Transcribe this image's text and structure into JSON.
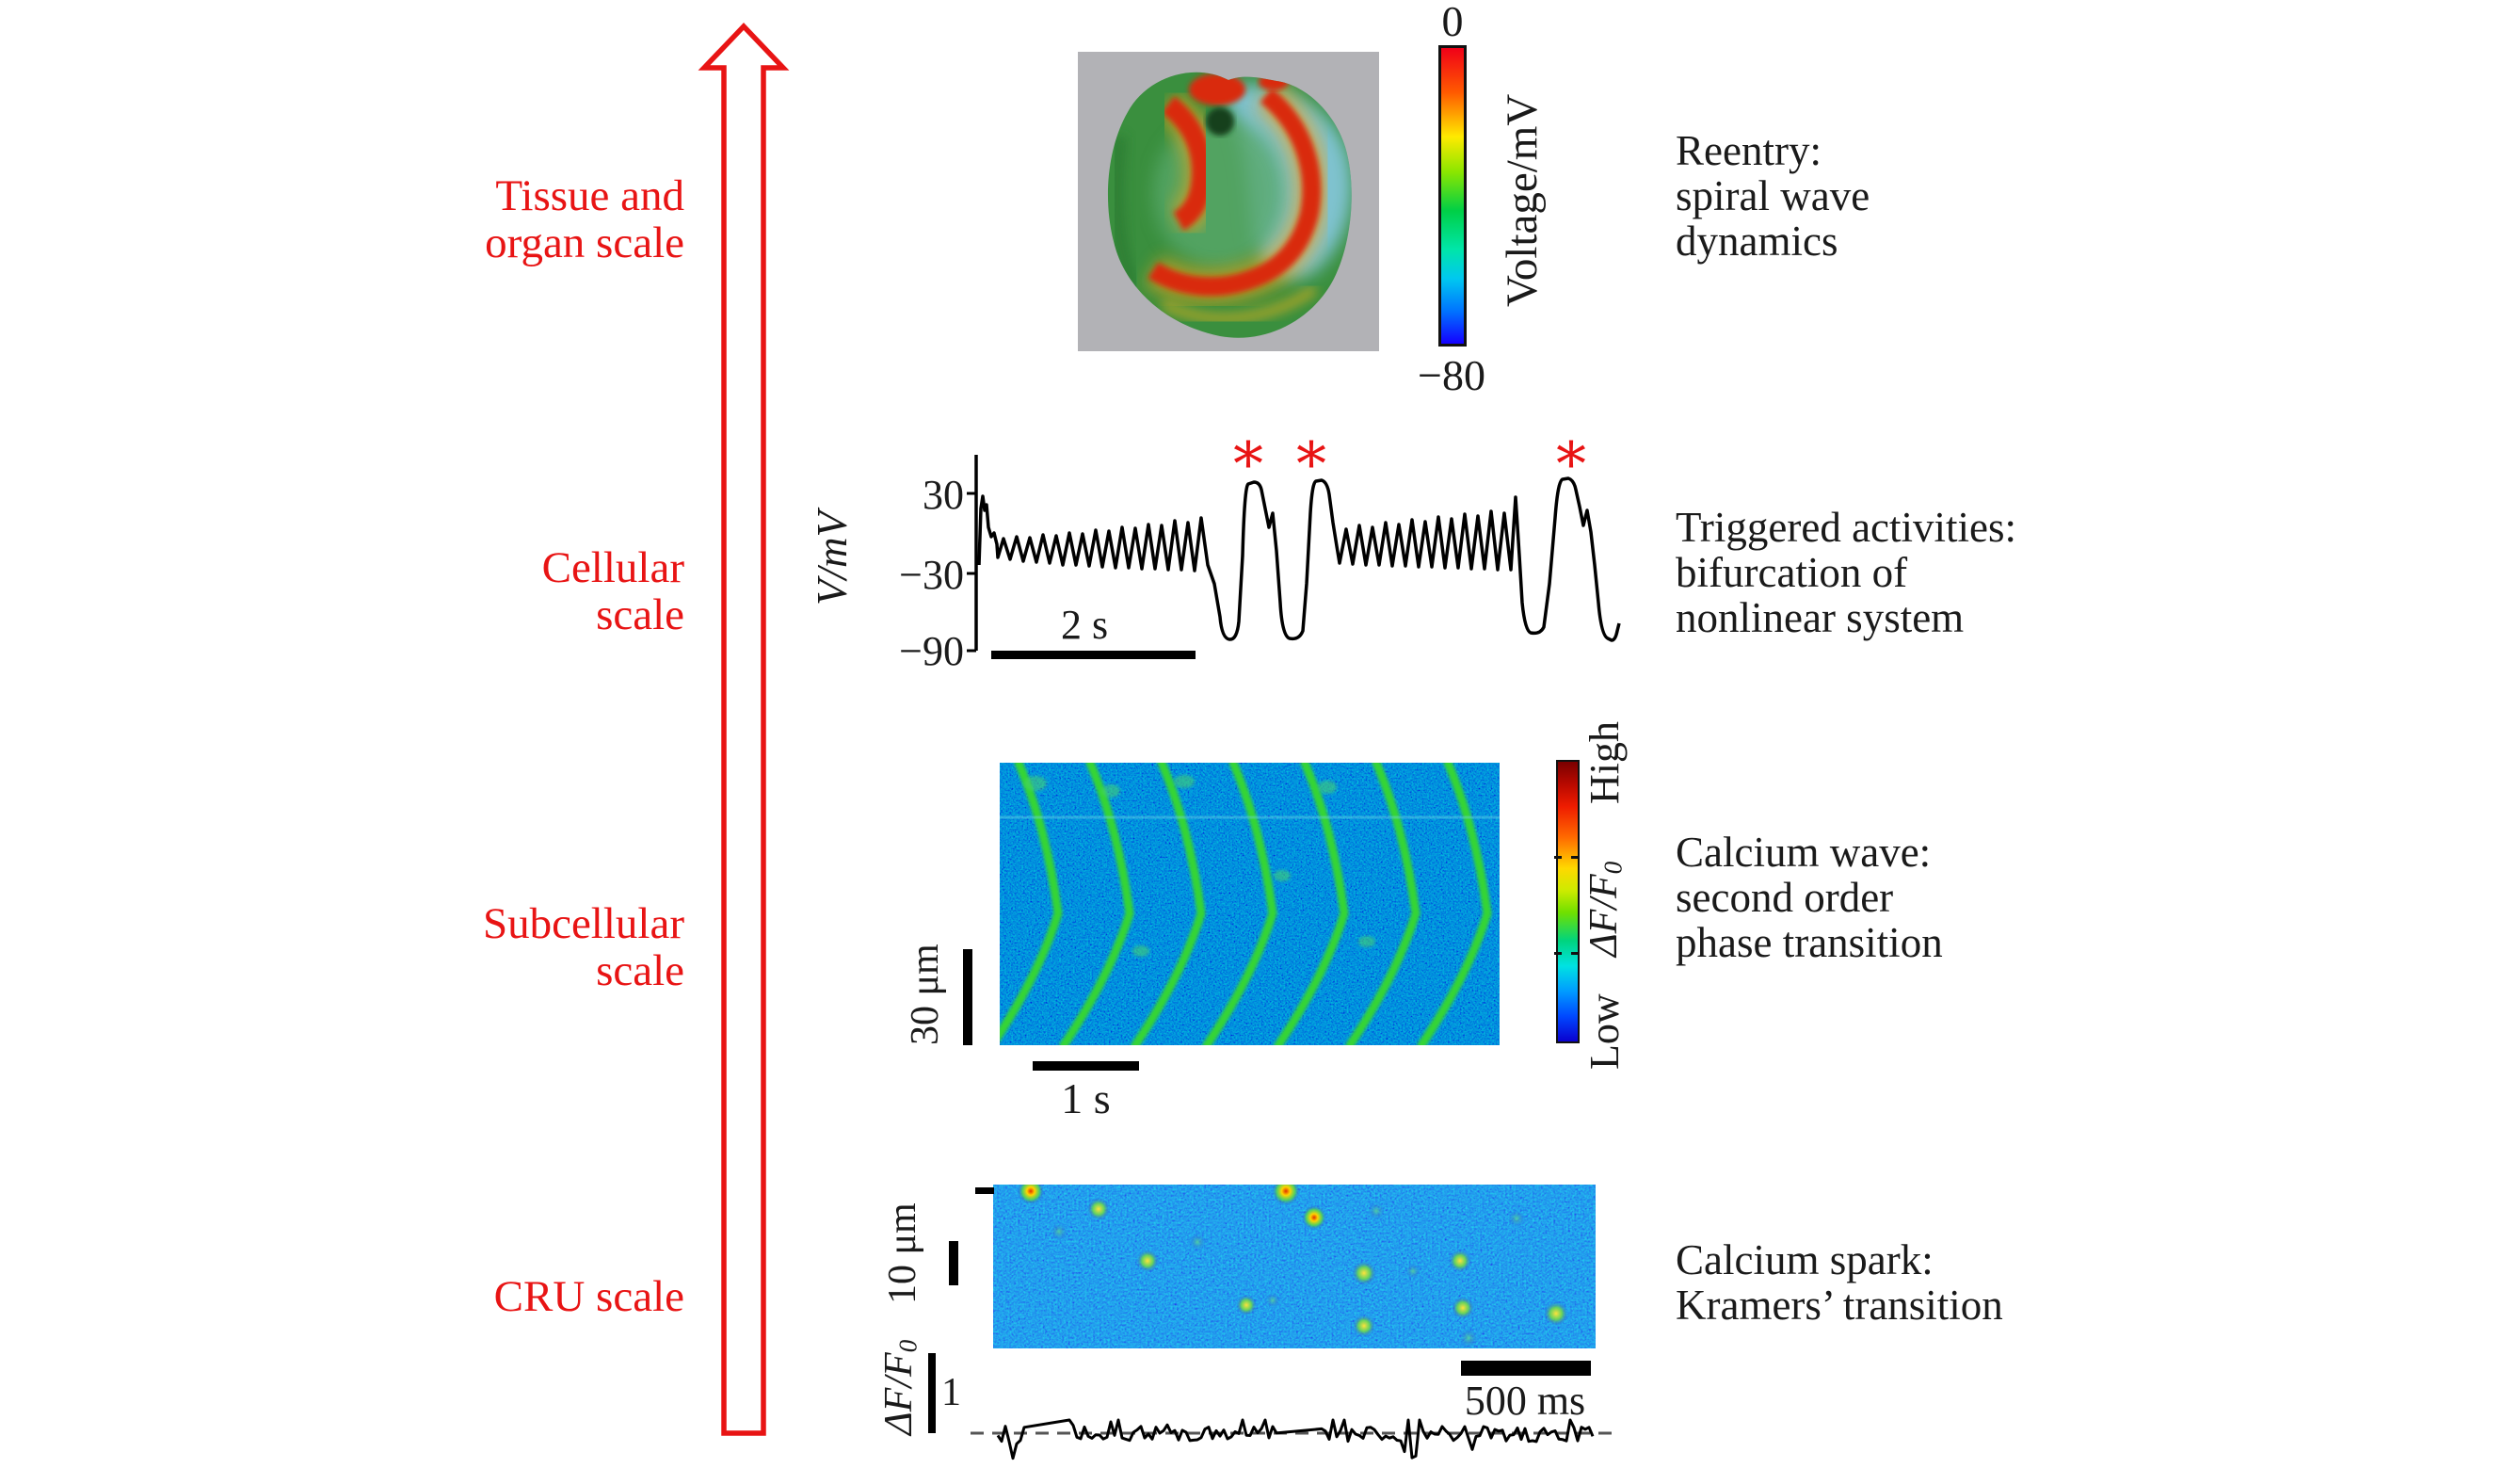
{
  "palette": {
    "accent_red": "#e81414",
    "text_black": "#1a1a1a",
    "heart_background_gray": "#b2b2b6",
    "calcium_blue": "#0a2ad2",
    "wave_green": "#35d435"
  },
  "scale_labels": [
    {
      "lines": [
        "Tissue and",
        "organ scale"
      ]
    },
    {
      "lines": [
        "Cellular",
        "scale"
      ]
    },
    {
      "lines": [
        "Subcellular",
        "scale"
      ]
    },
    {
      "lines": [
        "CRU scale"
      ]
    }
  ],
  "organ_panel": {
    "colorbar_top": "0",
    "colorbar_bottom": "−80",
    "colorbar_label": "Voltage/mV",
    "caption": [
      "Reentry:",
      "spiral wave",
      "dynamics"
    ]
  },
  "cellular_panel": {
    "ylabel": "V/mV",
    "yticks": [
      "30",
      "−30",
      "−90"
    ],
    "scalebar": "2 s",
    "asterisks": [
      "*",
      "*",
      "*"
    ],
    "caption": [
      "Triggered activities:",
      "bifurcation of",
      "nonlinear system"
    ]
  },
  "subcellular_panel": {
    "vbar_label": "30 μm",
    "hbar_label": "1 s",
    "colorbar_high": "High",
    "colorbar_label_main": "ΔF/F",
    "colorbar_label_sub": "0",
    "colorbar_low": "Low",
    "caption": [
      "Calcium wave:",
      "second order",
      "phase transition"
    ]
  },
  "cru_panel": {
    "vbar_label": "10 μm",
    "hbar_label": "500 ms",
    "trace_label_main": "ΔF/F",
    "trace_label_sub": "0",
    "amplitude_label": "1",
    "caption": [
      "Calcium spark:",
      "Kramers’ transition"
    ]
  }
}
